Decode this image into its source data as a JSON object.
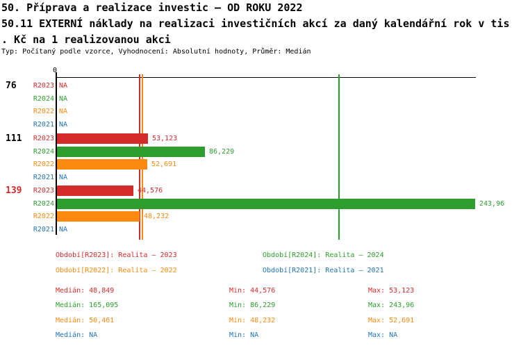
{
  "header": {
    "title_lines": [
      "50. Příprava a realizace investic – OD ROKU 2022",
      "50.11 EXTERNÍ náklady na realizaci investičních akcí za daný kalendářní rok v tis",
      ". Kč na 1 realizovanou akci"
    ],
    "subtitle": "Typ: Počítaný podle vzorce, Vyhodnocení: Absolutní hodnoty, Průměr: Medián"
  },
  "colors": {
    "R2023": "#d32a2a",
    "R2024": "#2d9e2d",
    "R2022": "#fa8a10",
    "R2021": "#2173b4",
    "axis": "#000000"
  },
  "chart_data": {
    "type": "bar",
    "orientation": "horizontal",
    "title": "50.11 EXTERNÍ náklady na realizaci investičních akcí za daný kalendářní rok v tis. Kč na 1 realizovanou akci",
    "x_axis": {
      "zero_label": "0",
      "min": 0,
      "grid": false
    },
    "na_label": "NA",
    "series_order": [
      "R2023",
      "R2024",
      "R2022",
      "R2021"
    ],
    "groups": [
      {
        "label": "76",
        "label_color": "#000000",
        "bars": [
          {
            "series": "R2023",
            "value": null,
            "display": "NA"
          },
          {
            "series": "R2024",
            "value": null,
            "display": "NA"
          },
          {
            "series": "R2022",
            "value": null,
            "display": "NA"
          },
          {
            "series": "R2021",
            "value": null,
            "display": "NA"
          }
        ]
      },
      {
        "label": "111",
        "label_color": "#000000",
        "bars": [
          {
            "series": "R2023",
            "value": 53123,
            "display": "53,123"
          },
          {
            "series": "R2024",
            "value": 86229,
            "display": "86,229"
          },
          {
            "series": "R2022",
            "value": 52691,
            "display": "52,691"
          },
          {
            "series": "R2021",
            "value": null,
            "display": "NA"
          }
        ]
      },
      {
        "label": "139",
        "label_color": "#d32a2a",
        "bars": [
          {
            "series": "R2023",
            "value": 44576,
            "display": "44,576"
          },
          {
            "series": "R2024",
            "value": 243960,
            "display": "243,96"
          },
          {
            "series": "R2022",
            "value": 48232,
            "display": "48,232"
          },
          {
            "series": "R2021",
            "value": null,
            "display": "NA"
          }
        ]
      }
    ],
    "median_lines": [
      {
        "series": "R2023",
        "value": 48849
      },
      {
        "series": "R2022",
        "value": 50461
      },
      {
        "series": "R2024",
        "value": 165095
      }
    ]
  },
  "legend": {
    "items": [
      {
        "series": "R2023",
        "text": "Období[R2023]: Realita – 2023"
      },
      {
        "series": "R2024",
        "text": "Období[R2024]: Realita – 2024"
      },
      {
        "series": "R2022",
        "text": "Období[R2022]: Realita – 2022"
      },
      {
        "series": "R2021",
        "text": "Období[R2021]: Realita – 2021"
      }
    ]
  },
  "stats": {
    "rows": [
      {
        "series": "R2023",
        "median": "Medián: 48,849",
        "min": "Min: 44,576",
        "max": "Max: 53,123"
      },
      {
        "series": "R2024",
        "median": "Medián: 165,095",
        "min": "Min: 86,229",
        "max": "Max: 243,96"
      },
      {
        "series": "R2022",
        "median": "Medián: 50,461",
        "min": "Min: 48,232",
        "max": "Max: 52,691"
      },
      {
        "series": "R2021",
        "median": "Medián: NA",
        "min": "Min: NA",
        "max": "Max: NA"
      }
    ]
  }
}
